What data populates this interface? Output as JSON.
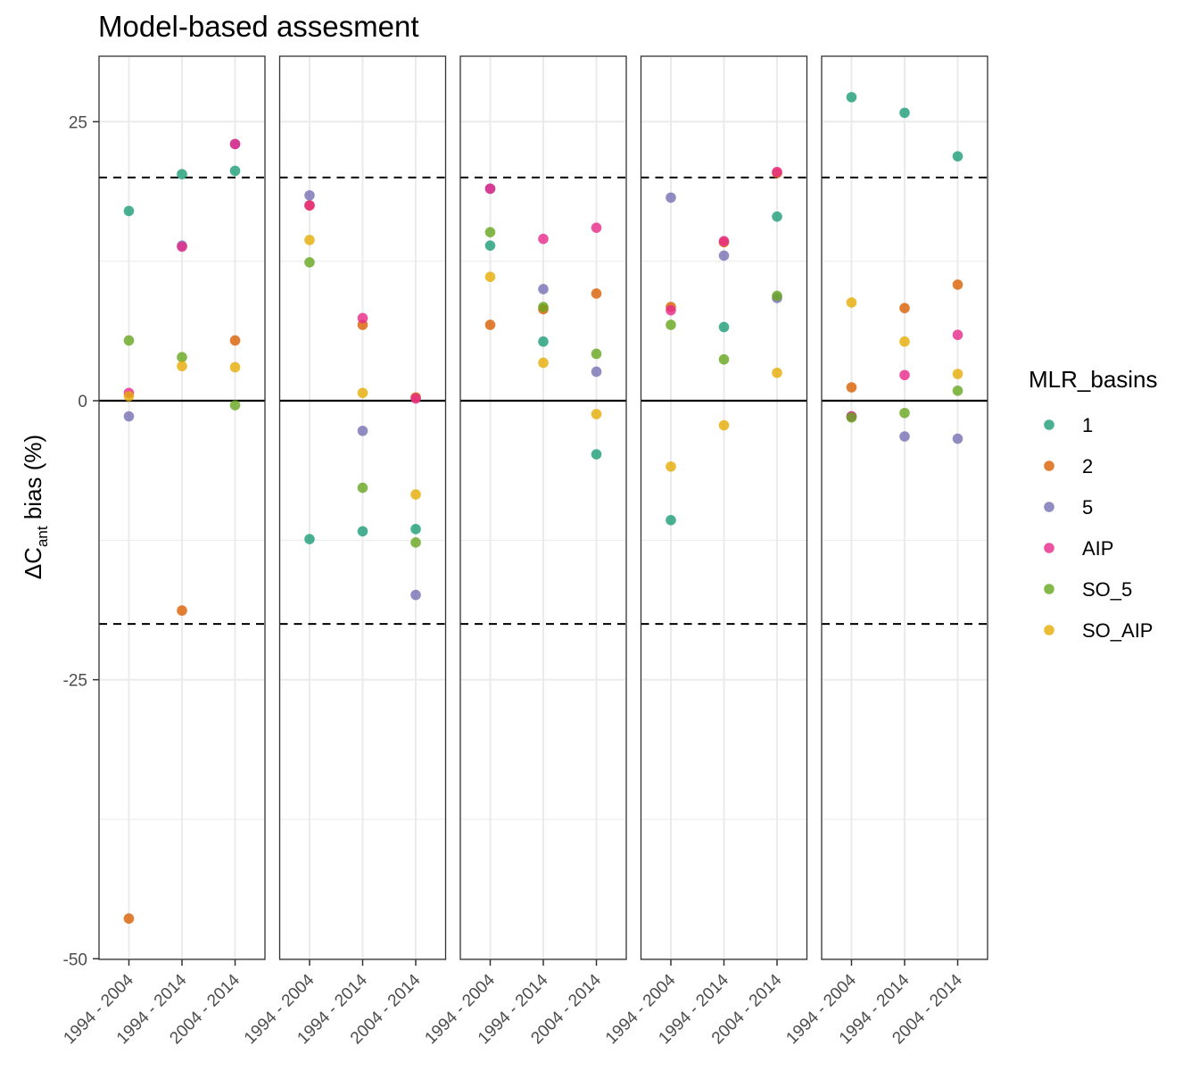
{
  "chart_data": {
    "type": "scatter",
    "title": "Model-based assesment",
    "ylabel": "ΔCant bias (%)",
    "ylabel_parts": {
      "prefix": "ΔC",
      "subscript": "ant",
      "suffix": " bias (%)"
    },
    "ylim": [
      -50,
      31
    ],
    "yticks": [
      25,
      0,
      -25,
      -50
    ],
    "y_tick_labels": [
      "25",
      "0",
      "-25",
      "-50"
    ],
    "categories": [
      "1994 - 2004",
      "1994 - 2014",
      "2004 - 2014"
    ],
    "reference_lines": {
      "solid": [
        0
      ],
      "dashed": [
        20,
        -20
      ]
    },
    "grid": true,
    "legend": {
      "title": "MLR_basins",
      "position": "right",
      "entries": [
        {
          "label": "1",
          "color": "#1B9E77"
        },
        {
          "label": "2",
          "color": "#D95F02"
        },
        {
          "label": "5",
          "color": "#7570B3"
        },
        {
          "label": "AIP",
          "color": "#E7298A"
        },
        {
          "label": "SO_5",
          "color": "#66A61E"
        },
        {
          "label": "SO_AIP",
          "color": "#E6AB02"
        }
      ]
    },
    "panels": [
      {
        "series": [
          {
            "name": "1",
            "values": [
              17,
              20.3,
              20.6
            ]
          },
          {
            "name": "2",
            "values": [
              -46.4,
              -18.8,
              5.4
            ]
          },
          {
            "name": "5",
            "values": [
              -1.4,
              13.9,
              23
            ]
          },
          {
            "name": "AIP",
            "values": [
              0.7,
              13.8,
              23
            ]
          },
          {
            "name": "SO_5",
            "values": [
              5.4,
              3.9,
              -0.4
            ]
          },
          {
            "name": "SO_AIP",
            "values": [
              0.4,
              3.1,
              3
            ]
          }
        ]
      },
      {
        "series": [
          {
            "name": "1",
            "values": [
              -12.4,
              -11.7,
              -11.5
            ]
          },
          {
            "name": "2",
            "values": [
              17.5,
              6.8,
              0.3
            ]
          },
          {
            "name": "5",
            "values": [
              18.4,
              -2.7,
              -17.4
            ]
          },
          {
            "name": "AIP",
            "values": [
              17.5,
              7.4,
              0.2
            ]
          },
          {
            "name": "SO_5",
            "values": [
              12.4,
              -7.8,
              -12.7
            ]
          },
          {
            "name": "SO_AIP",
            "values": [
              14.4,
              0.7,
              -8.4
            ]
          }
        ]
      },
      {
        "series": [
          {
            "name": "1",
            "values": [
              13.9,
              5.3,
              -4.8
            ]
          },
          {
            "name": "2",
            "values": [
              6.8,
              8.2,
              9.6
            ]
          },
          {
            "name": "5",
            "values": [
              19,
              10,
              2.6
            ]
          },
          {
            "name": "AIP",
            "values": [
              19,
              14.5,
              15.5
            ]
          },
          {
            "name": "SO_5",
            "values": [
              15.1,
              8.4,
              4.2
            ]
          },
          {
            "name": "SO_AIP",
            "values": [
              11.1,
              3.4,
              -1.2
            ]
          }
        ]
      },
      {
        "series": [
          {
            "name": "1",
            "values": [
              -10.7,
              6.6,
              16.5
            ]
          },
          {
            "name": "2",
            "values": [
              8.4,
              14.2,
              20.4
            ]
          },
          {
            "name": "5",
            "values": [
              18.2,
              13,
              9.2
            ]
          },
          {
            "name": "AIP",
            "values": [
              8.1,
              14.3,
              20.5
            ]
          },
          {
            "name": "SO_5",
            "values": [
              6.8,
              3.7,
              9.4
            ]
          },
          {
            "name": "SO_AIP",
            "values": [
              -5.9,
              -2.2,
              2.5
            ]
          }
        ]
      },
      {
        "series": [
          {
            "name": "1",
            "values": [
              27.2,
              25.8,
              21.9
            ]
          },
          {
            "name": "2",
            "values": [
              1.2,
              8.3,
              10.4
            ]
          },
          {
            "name": "5",
            "values": [
              -1.4,
              -3.2,
              -3.4
            ]
          },
          {
            "name": "AIP",
            "values": [
              -1.4,
              2.3,
              5.9
            ]
          },
          {
            "name": "SO_5",
            "values": [
              -1.5,
              -1.1,
              0.9
            ]
          },
          {
            "name": "SO_AIP",
            "values": [
              8.8,
              5.3,
              2.4
            ]
          }
        ]
      }
    ]
  }
}
